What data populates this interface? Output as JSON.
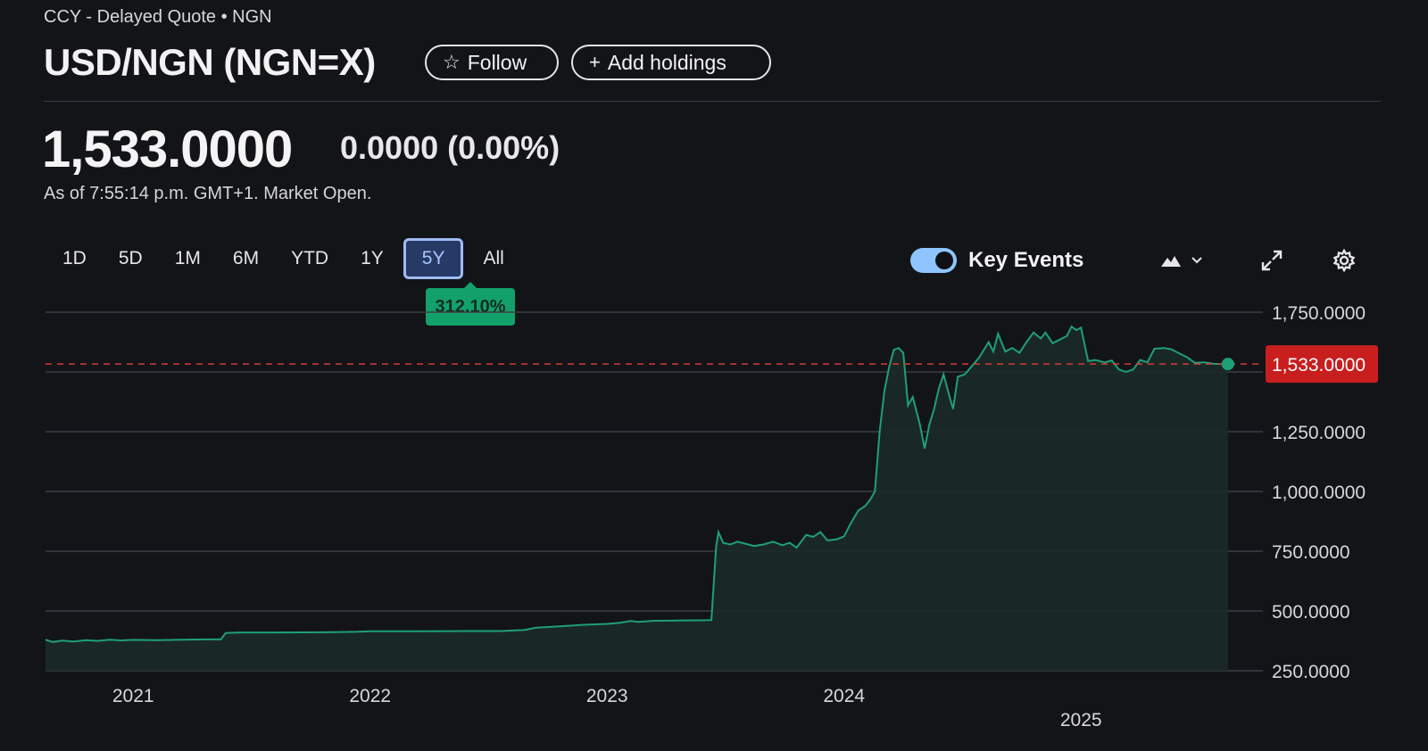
{
  "header": {
    "subtitle": "CCY - Delayed Quote • NGN",
    "title": "USD/NGN (NGN=X)",
    "follow_label": "Follow",
    "add_holdings_label": "Add holdings"
  },
  "quote": {
    "price": "1,533.0000",
    "change": "0.0000",
    "change_pct": "(0.00%)",
    "as_of": "As of 7:55:14 p.m. GMT+1. Market Open."
  },
  "ranges": [
    "1D",
    "5D",
    "1M",
    "6M",
    "YTD",
    "1Y",
    "5Y",
    "All"
  ],
  "active_range": "5Y",
  "performance_badge": "312.10%",
  "toolbar": {
    "key_events_label": "Key Events",
    "key_events_on": true,
    "chart_type_icon": "mountain-chart-icon",
    "fullscreen_icon": "expand-icon",
    "settings_icon": "gear-icon"
  },
  "colors": {
    "line": "#1f9f78",
    "area": "#1c2a27",
    "current_label_bg": "#c81e1e",
    "badge_bg": "#14a06b",
    "active_range_bg": "#273a66"
  },
  "chart_data": {
    "type": "area",
    "y_ticks": [
      "1,750.0000",
      "1,250.0000",
      "1,000.0000",
      "750.0000",
      "500.0000",
      "250.0000"
    ],
    "y_tick_values": [
      1750,
      1250,
      1000,
      750,
      500,
      250
    ],
    "ylim": [
      250,
      1750
    ],
    "x_ticks": [
      "2021",
      "2022",
      "2023",
      "2024",
      "2025"
    ],
    "x_tick_values": [
      2021.0,
      2022.0,
      2023.0,
      2024.0,
      2025.0
    ],
    "xlim": [
      2020.63,
      2025.9
    ],
    "current_value": 1533,
    "current_label": "1,533.0000",
    "grid": true,
    "points": [
      [
        2020.63,
        380
      ],
      [
        2020.66,
        370
      ],
      [
        2020.7,
        376
      ],
      [
        2020.75,
        372
      ],
      [
        2020.8,
        378
      ],
      [
        2020.85,
        375
      ],
      [
        2020.9,
        380
      ],
      [
        2020.95,
        377
      ],
      [
        2021.0,
        379
      ],
      [
        2021.1,
        378
      ],
      [
        2021.2,
        380
      ],
      [
        2021.3,
        381
      ],
      [
        2021.37,
        381
      ],
      [
        2021.39,
        408
      ],
      [
        2021.45,
        410
      ],
      [
        2021.6,
        410
      ],
      [
        2021.8,
        411
      ],
      [
        2021.95,
        413
      ],
      [
        2022.0,
        415
      ],
      [
        2022.2,
        415
      ],
      [
        2022.4,
        416
      ],
      [
        2022.55,
        416
      ],
      [
        2022.65,
        420
      ],
      [
        2022.7,
        430
      ],
      [
        2022.8,
        436
      ],
      [
        2022.9,
        442
      ],
      [
        2023.0,
        446
      ],
      [
        2023.05,
        450
      ],
      [
        2023.1,
        458
      ],
      [
        2023.13,
        454
      ],
      [
        2023.2,
        459
      ],
      [
        2023.3,
        460
      ],
      [
        2023.4,
        461
      ],
      [
        2023.44,
        462
      ],
      [
        2023.46,
        770
      ],
      [
        2023.47,
        830
      ],
      [
        2023.49,
        785
      ],
      [
        2023.52,
        778
      ],
      [
        2023.55,
        790
      ],
      [
        2023.58,
        782
      ],
      [
        2023.62,
        772
      ],
      [
        2023.66,
        778
      ],
      [
        2023.7,
        790
      ],
      [
        2023.74,
        775
      ],
      [
        2023.77,
        785
      ],
      [
        2023.8,
        765
      ],
      [
        2023.84,
        818
      ],
      [
        2023.87,
        810
      ],
      [
        2023.9,
        830
      ],
      [
        2023.93,
        795
      ],
      [
        2023.97,
        800
      ],
      [
        2024.0,
        812
      ],
      [
        2024.03,
        870
      ],
      [
        2024.06,
        920
      ],
      [
        2024.09,
        940
      ],
      [
        2024.11,
        965
      ],
      [
        2024.13,
        1000
      ],
      [
        2024.15,
        1250
      ],
      [
        2024.17,
        1420
      ],
      [
        2024.19,
        1520
      ],
      [
        2024.21,
        1593
      ],
      [
        2024.23,
        1600
      ],
      [
        2024.25,
        1580
      ],
      [
        2024.27,
        1360
      ],
      [
        2024.29,
        1395
      ],
      [
        2024.32,
        1280
      ],
      [
        2024.34,
        1180
      ],
      [
        2024.36,
        1280
      ],
      [
        2024.38,
        1345
      ],
      [
        2024.4,
        1430
      ],
      [
        2024.42,
        1490
      ],
      [
        2024.45,
        1380
      ],
      [
        2024.46,
        1345
      ],
      [
        2024.48,
        1480
      ],
      [
        2024.51,
        1490
      ],
      [
        2024.54,
        1525
      ],
      [
        2024.57,
        1560
      ],
      [
        2024.59,
        1593
      ],
      [
        2024.61,
        1625
      ],
      [
        2024.63,
        1585
      ],
      [
        2024.65,
        1660
      ],
      [
        2024.68,
        1585
      ],
      [
        2024.71,
        1600
      ],
      [
        2024.74,
        1580
      ],
      [
        2024.77,
        1625
      ],
      [
        2024.8,
        1665
      ],
      [
        2024.83,
        1640
      ],
      [
        2024.85,
        1665
      ],
      [
        2024.88,
        1620
      ],
      [
        2024.91,
        1635
      ],
      [
        2024.94,
        1650
      ],
      [
        2024.96,
        1690
      ],
      [
        2024.98,
        1675
      ],
      [
        2025.0,
        1685
      ],
      [
        2025.03,
        1545
      ],
      [
        2025.06,
        1550
      ],
      [
        2025.1,
        1540
      ],
      [
        2025.13,
        1548
      ],
      [
        2025.16,
        1510
      ],
      [
        2025.19,
        1500
      ],
      [
        2025.22,
        1510
      ],
      [
        2025.25,
        1550
      ],
      [
        2025.28,
        1540
      ],
      [
        2025.31,
        1597
      ],
      [
        2025.35,
        1600
      ],
      [
        2025.38,
        1595
      ],
      [
        2025.42,
        1575
      ],
      [
        2025.45,
        1560
      ],
      [
        2025.48,
        1538
      ],
      [
        2025.52,
        1540
      ],
      [
        2025.56,
        1534
      ],
      [
        2025.6,
        1533
      ],
      [
        2025.62,
        1533
      ]
    ]
  }
}
